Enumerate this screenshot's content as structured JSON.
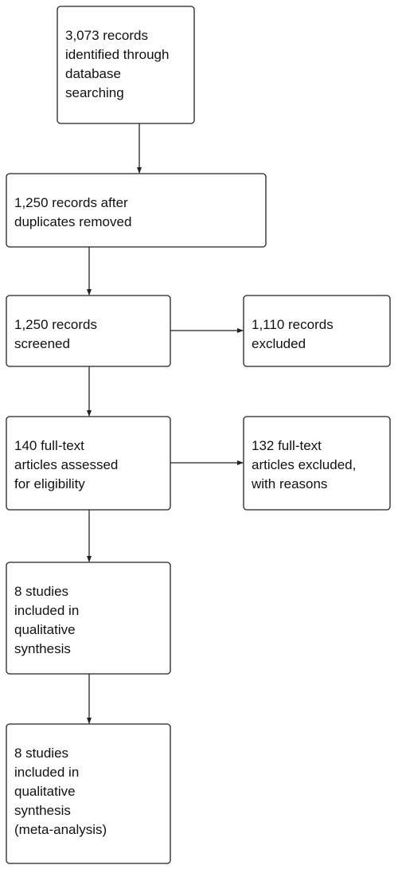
{
  "nodes": [
    {
      "lines": [
        "3,073 records",
        "identified through",
        "database",
        "searching"
      ]
    },
    {
      "lines": [
        "1,250 records after",
        "duplicates removed"
      ]
    },
    {
      "lines": [
        "1,250 records",
        "screened"
      ]
    },
    {
      "lines": [
        "1,110 records",
        "excluded"
      ]
    },
    {
      "lines": [
        "140 full-text",
        "articles assessed",
        "for eligibility"
      ]
    },
    {
      "lines": [
        "132 full-text",
        "articles excluded,",
        "with reasons"
      ]
    },
    {
      "lines": [
        "8 studies",
        "included in",
        "qualitative",
        "synthesis"
      ]
    },
    {
      "lines": [
        "8 studies",
        "included in",
        "qualitative",
        "synthesis",
        "(meta-analysis)"
      ]
    }
  ]
}
